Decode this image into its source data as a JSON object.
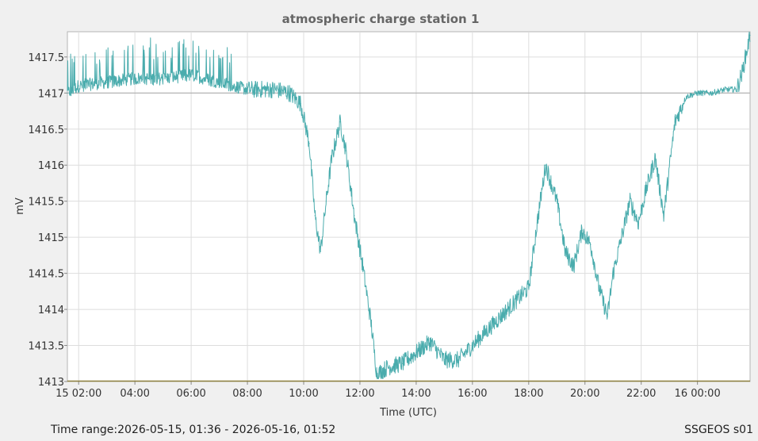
{
  "chart_data": {
    "type": "line",
    "title": "atmospheric charge station 1",
    "xlabel": "Time (UTC)",
    "ylabel": "mV",
    "x_ticks": [
      "15 02:00",
      "04:00",
      "06:00",
      "08:00",
      "10:00",
      "12:00",
      "14:00",
      "16:00",
      "18:00",
      "20:00",
      "22:00",
      "16 00:00"
    ],
    "y_ticks": [
      "1413",
      "1413.5",
      "1414",
      "1414.5",
      "1415",
      "1415.5",
      "1416",
      "1416.5",
      "1417",
      "1417.5"
    ],
    "xlim_hours": [
      1.6,
      25.87
    ],
    "ylim": [
      1413,
      1417.85
    ],
    "grid": true,
    "reference_line": 1417,
    "series": [
      {
        "color": "#4aacad",
        "x_hours": [
          1.6,
          2.0,
          3.0,
          4.0,
          5.0,
          6.0,
          7.0,
          8.0,
          9.0,
          9.5,
          9.9,
          10.2,
          10.4,
          10.6,
          10.8,
          11.0,
          11.3,
          11.5,
          11.8,
          12.1,
          12.4,
          12.6,
          13.0,
          13.5,
          14.0,
          14.5,
          15.0,
          15.5,
          16.0,
          16.5,
          17.0,
          17.5,
          18.0,
          18.3,
          18.6,
          19.0,
          19.3,
          19.6,
          19.9,
          20.2,
          20.5,
          20.8,
          21.0,
          21.3,
          21.6,
          21.9,
          22.2,
          22.5,
          22.8,
          23.2,
          23.6,
          24.0,
          24.5,
          25.0,
          25.4,
          25.6,
          25.87
        ],
        "values": [
          1417.0,
          1417.1,
          1417.15,
          1417.2,
          1417.2,
          1417.25,
          1417.15,
          1417.05,
          1417.05,
          1417.0,
          1416.85,
          1416.3,
          1415.3,
          1414.8,
          1415.5,
          1416.1,
          1416.6,
          1416.2,
          1415.3,
          1414.6,
          1413.8,
          1413.1,
          1413.2,
          1413.25,
          1413.4,
          1413.55,
          1413.3,
          1413.3,
          1413.5,
          1413.7,
          1413.9,
          1414.1,
          1414.3,
          1415.2,
          1416.0,
          1415.5,
          1414.8,
          1414.6,
          1415.1,
          1414.9,
          1414.3,
          1413.9,
          1414.5,
          1415.0,
          1415.5,
          1415.2,
          1415.7,
          1416.1,
          1415.3,
          1416.6,
          1416.95,
          1417.0,
          1417.0,
          1417.05,
          1417.05,
          1417.3,
          1417.8
        ]
      }
    ]
  },
  "footer": {
    "time_range": "Time range:2026-05-15, 01:36 - 2026-05-16, 01:52",
    "station": "SSGEOS s01"
  },
  "colors": {
    "background": "#f0f0f0",
    "plot_background": "#ffffff",
    "grid": "#dddddd",
    "series": "#4aacad",
    "baseline": "#8a7d3a"
  }
}
